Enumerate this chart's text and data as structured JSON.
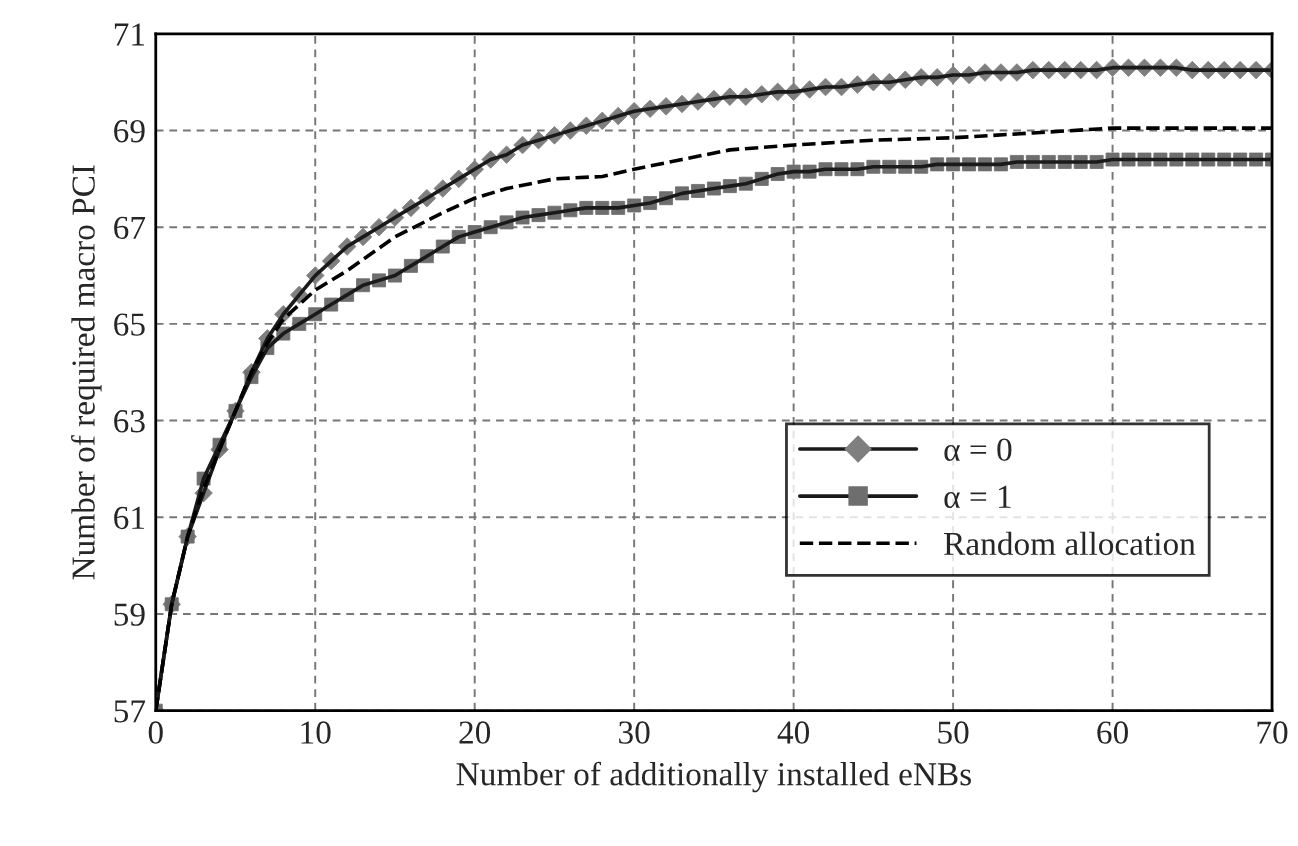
{
  "chart_data": {
    "type": "line",
    "xlabel": "Number of additionally installed eNBs",
    "ylabel": "Number of required macro PCI",
    "xlim": [
      0,
      70
    ],
    "xticks": [
      0,
      10,
      20,
      30,
      40,
      50,
      60,
      70
    ],
    "ylim": [
      57,
      71
    ],
    "yticks": [
      57,
      59,
      61,
      63,
      65,
      67,
      69,
      71
    ],
    "grid": true,
    "legend": "bottom right",
    "series": [
      {
        "name": "α = 0",
        "color": "#7f7f7f",
        "marker": "diamond",
        "line_style": "solid",
        "x": [
          0,
          1,
          2,
          3,
          4,
          5,
          6,
          7,
          8,
          9,
          10,
          11,
          12,
          13,
          14,
          15,
          16,
          17,
          18,
          19,
          20,
          21,
          22,
          23,
          24,
          25,
          26,
          27,
          28,
          29,
          30,
          31,
          32,
          33,
          34,
          35,
          36,
          37,
          38,
          39,
          40,
          41,
          42,
          43,
          44,
          45,
          46,
          47,
          48,
          49,
          50,
          51,
          52,
          53,
          54,
          55,
          56,
          57,
          58,
          59,
          60,
          61,
          62,
          63,
          64,
          65,
          66,
          67,
          68,
          69,
          70
        ],
        "values": [
          57,
          59.2,
          60.6,
          61.5,
          62.4,
          63.2,
          64.0,
          64.7,
          65.2,
          65.6,
          66.0,
          66.3,
          66.6,
          66.8,
          67.0,
          67.2,
          67.4,
          67.6,
          67.8,
          68.0,
          68.2,
          68.4,
          68.5,
          68.7,
          68.8,
          68.9,
          69.0,
          69.1,
          69.2,
          69.3,
          69.4,
          69.45,
          69.5,
          69.55,
          69.6,
          69.65,
          69.7,
          69.7,
          69.75,
          69.8,
          69.8,
          69.85,
          69.9,
          69.9,
          69.95,
          70.0,
          70.0,
          70.05,
          70.1,
          70.1,
          70.15,
          70.15,
          70.2,
          70.2,
          70.2,
          70.25,
          70.25,
          70.25,
          70.25,
          70.25,
          70.3,
          70.3,
          70.3,
          70.3,
          70.3,
          70.25,
          70.25,
          70.25,
          70.25,
          70.25,
          70.25
        ]
      },
      {
        "name": "α = 1",
        "color": "#6e6e6e",
        "marker": "square",
        "line_style": "solid",
        "x": [
          0,
          1,
          2,
          3,
          4,
          5,
          6,
          7,
          8,
          9,
          10,
          11,
          12,
          13,
          14,
          15,
          16,
          17,
          18,
          19,
          20,
          21,
          22,
          23,
          24,
          25,
          26,
          27,
          28,
          29,
          30,
          31,
          32,
          33,
          34,
          35,
          36,
          37,
          38,
          39,
          40,
          41,
          42,
          43,
          44,
          45,
          46,
          47,
          48,
          49,
          50,
          51,
          52,
          53,
          54,
          55,
          56,
          57,
          58,
          59,
          60,
          61,
          62,
          63,
          64,
          65,
          66,
          67,
          68,
          69,
          70
        ],
        "values": [
          57,
          59.2,
          60.6,
          61.8,
          62.5,
          63.2,
          63.9,
          64.5,
          64.8,
          65.0,
          65.2,
          65.4,
          65.6,
          65.8,
          65.9,
          66.0,
          66.2,
          66.4,
          66.6,
          66.8,
          66.9,
          67.0,
          67.1,
          67.2,
          67.25,
          67.3,
          67.35,
          67.4,
          67.4,
          67.4,
          67.45,
          67.5,
          67.6,
          67.7,
          67.75,
          67.8,
          67.85,
          67.9,
          68.0,
          68.1,
          68.15,
          68.15,
          68.2,
          68.2,
          68.2,
          68.25,
          68.25,
          68.25,
          68.25,
          68.3,
          68.3,
          68.3,
          68.3,
          68.3,
          68.35,
          68.35,
          68.35,
          68.35,
          68.35,
          68.35,
          68.4,
          68.4,
          68.4,
          68.4,
          68.4,
          68.4,
          68.4,
          68.4,
          68.4,
          68.4,
          68.4
        ]
      },
      {
        "name": "Random allocation",
        "color": "#000000",
        "marker": "none",
        "line_style": "dashed",
        "x": [
          0,
          1,
          2,
          3,
          4,
          5,
          6,
          7,
          8,
          9,
          10,
          12,
          15,
          18,
          20,
          22,
          25,
          28,
          30,
          33,
          36,
          40,
          45,
          50,
          55,
          60,
          65,
          70
        ],
        "values": [
          57,
          59.2,
          60.6,
          61.6,
          62.4,
          63.2,
          64.0,
          64.6,
          65.1,
          65.4,
          65.7,
          66.1,
          66.8,
          67.3,
          67.6,
          67.8,
          68.0,
          68.05,
          68.2,
          68.4,
          68.6,
          68.7,
          68.8,
          68.85,
          68.95,
          69.05,
          69.05,
          69.05
        ]
      }
    ]
  }
}
